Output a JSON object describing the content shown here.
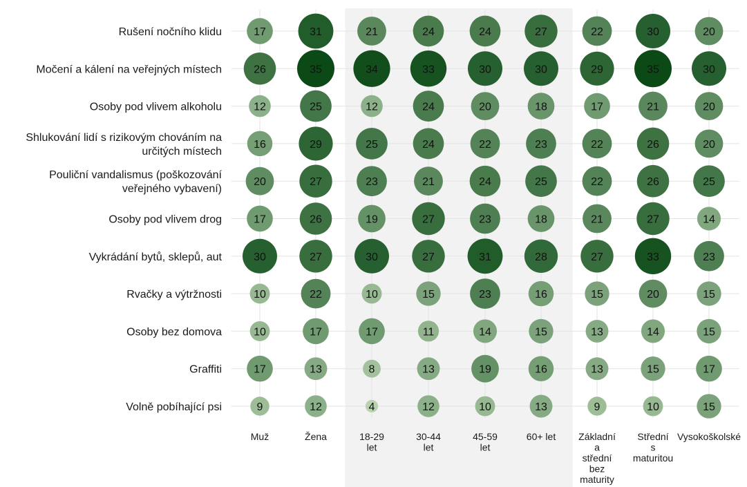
{
  "chart_data": {
    "type": "bubble-matrix",
    "columns": [
      [
        "Muž"
      ],
      [
        "Žena"
      ],
      [
        "18-29",
        "let"
      ],
      [
        "30-44",
        "let"
      ],
      [
        "45-59",
        "let"
      ],
      [
        "60+ let"
      ],
      [
        "Základní",
        "a",
        "střední",
        "bez",
        "maturity"
      ],
      [
        "Střední",
        "s",
        "maturitou"
      ],
      [
        "Vysokoškolské"
      ]
    ],
    "highlighted_columns": [
      2,
      3,
      4,
      5
    ],
    "rows": [
      {
        "label": [
          "Rušení nočního klidu"
        ],
        "values": [
          17,
          31,
          21,
          24,
          24,
          27,
          22,
          30,
          20
        ]
      },
      {
        "label": [
          "Močení a kálení na veřejných místech"
        ],
        "values": [
          26,
          35,
          34,
          33,
          30,
          30,
          29,
          35,
          30
        ]
      },
      {
        "label": [
          "Osoby pod vlivem alkoholu"
        ],
        "values": [
          12,
          25,
          12,
          24,
          20,
          18,
          17,
          21,
          20
        ]
      },
      {
        "label": [
          "Shlukování lidí s rizikovým chováním na",
          "určitých místech"
        ],
        "values": [
          16,
          29,
          25,
          24,
          22,
          23,
          22,
          26,
          20
        ]
      },
      {
        "label": [
          "Pouliční vandalismus (poškozování",
          "veřejného vybavení)"
        ],
        "values": [
          20,
          27,
          23,
          21,
          24,
          25,
          22,
          26,
          25
        ]
      },
      {
        "label": [
          "Osoby pod vlivem drog"
        ],
        "values": [
          17,
          26,
          19,
          27,
          23,
          18,
          21,
          27,
          14
        ]
      },
      {
        "label": [
          "Vykrádání bytů, sklepů, aut"
        ],
        "values": [
          30,
          27,
          30,
          27,
          31,
          28,
          27,
          33,
          23
        ]
      },
      {
        "label": [
          "Rvačky a výtržnosti"
        ],
        "values": [
          10,
          22,
          10,
          15,
          23,
          16,
          15,
          20,
          15
        ]
      },
      {
        "label": [
          "Osoby bez domova"
        ],
        "values": [
          10,
          17,
          17,
          11,
          14,
          15,
          13,
          14,
          15
        ]
      },
      {
        "label": [
          "Graffiti"
        ],
        "values": [
          17,
          13,
          8,
          13,
          19,
          16,
          13,
          15,
          17
        ]
      },
      {
        "label": [
          "Volně pobíhající psi"
        ],
        "values": [
          9,
          12,
          4,
          12,
          10,
          13,
          9,
          10,
          15
        ]
      }
    ],
    "value_range": [
      4,
      35
    ],
    "color_low": "#b9d3b0",
    "color_high": "#0b4a17",
    "highlight_color": "#f2f2f2",
    "grid": true,
    "legend": "none"
  }
}
